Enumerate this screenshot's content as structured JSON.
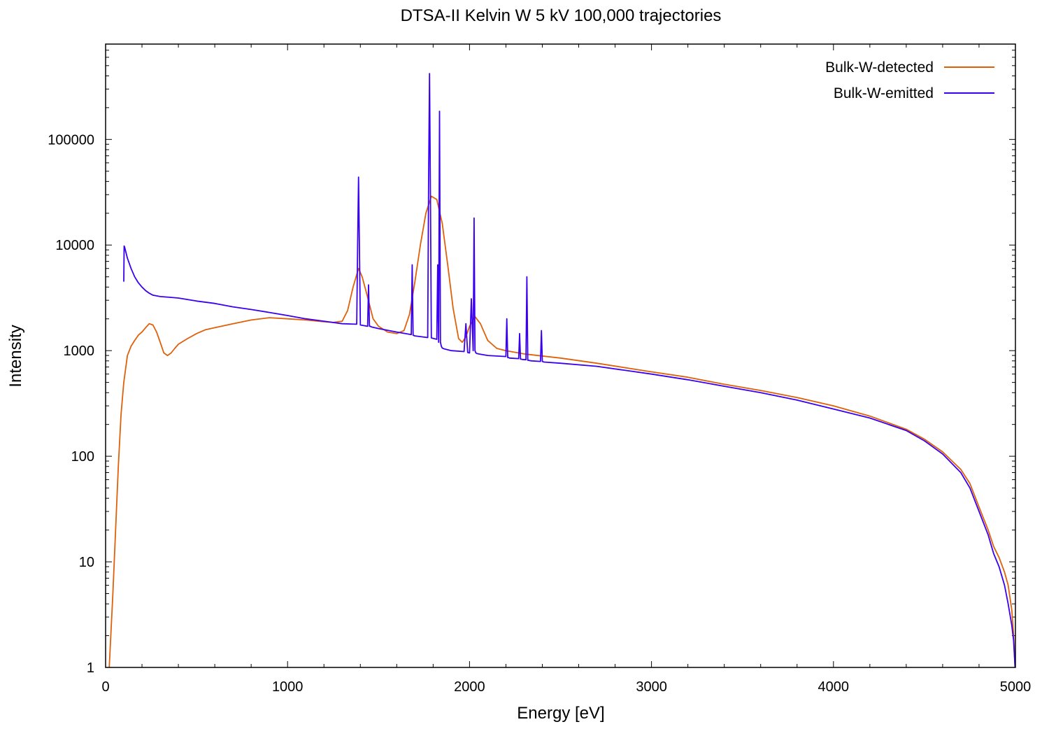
{
  "chart_data": {
    "type": "line",
    "title": "DTSA-II Kelvin W 5 kV 100,000 trajectories",
    "xlabel": "Energy [eV]",
    "ylabel": "Intensity",
    "xlim": [
      0,
      5000
    ],
    "ylim": [
      1,
      800000
    ],
    "y_scale": "log",
    "grid": false,
    "legend_position": "top-right",
    "x_ticks": [
      {
        "value": 0,
        "label": "0"
      },
      {
        "value": 1000,
        "label": "1000"
      },
      {
        "value": 2000,
        "label": "2000"
      },
      {
        "value": 3000,
        "label": "3000"
      },
      {
        "value": 4000,
        "label": "4000"
      },
      {
        "value": 5000,
        "label": "5000"
      }
    ],
    "y_ticks": [
      {
        "value": 1,
        "label": "1"
      },
      {
        "value": 10,
        "label": "10"
      },
      {
        "value": 100,
        "label": "100"
      },
      {
        "value": 1000,
        "label": "1000"
      },
      {
        "value": 10000,
        "label": "10000"
      },
      {
        "value": 100000,
        "label": "100000"
      }
    ],
    "series": [
      {
        "name": "Bulk-W-detected",
        "color": "#e0600a",
        "x": [
          20,
          40,
          55,
          70,
          85,
          100,
          120,
          140,
          160,
          180,
          200,
          220,
          240,
          260,
          280,
          300,
          320,
          340,
          360,
          380,
          400,
          450,
          500,
          550,
          600,
          700,
          800,
          900,
          1000,
          1100,
          1200,
          1250,
          1300,
          1330,
          1360,
          1390,
          1410,
          1440,
          1470,
          1500,
          1550,
          1600,
          1640,
          1670,
          1700,
          1730,
          1760,
          1790,
          1820,
          1850,
          1880,
          1910,
          1940,
          1960,
          1980,
          2000,
          2030,
          2060,
          2100,
          2150,
          2200,
          2300,
          2500,
          2700,
          3000,
          3200,
          3400,
          3600,
          3800,
          4000,
          4200,
          4400,
          4500,
          4600,
          4700,
          4750,
          4800,
          4850,
          4880,
          4910,
          4940,
          4960,
          4980,
          4990,
          4998
        ],
        "y": [
          1,
          5,
          20,
          80,
          250,
          500,
          900,
          1100,
          1250,
          1400,
          1500,
          1650,
          1800,
          1750,
          1500,
          1200,
          950,
          900,
          950,
          1050,
          1150,
          1300,
          1450,
          1580,
          1650,
          1800,
          1950,
          2050,
          2000,
          1950,
          1880,
          1850,
          1900,
          2400,
          4000,
          6000,
          5000,
          3200,
          2000,
          1700,
          1500,
          1450,
          1550,
          2200,
          4500,
          10000,
          20000,
          29000,
          27000,
          16000,
          6500,
          2500,
          1300,
          1200,
          1350,
          1700,
          2100,
          1800,
          1250,
          1050,
          1000,
          930,
          850,
          760,
          630,
          560,
          480,
          420,
          360,
          300,
          240,
          180,
          145,
          110,
          75,
          55,
          33,
          20,
          14,
          11,
          8,
          6,
          3.5,
          2,
          1
        ]
      },
      {
        "name": "Bulk-W-emitted",
        "color": "#3a00f0",
        "x": [
          100,
          102,
          105,
          120,
          140,
          160,
          180,
          200,
          220,
          240,
          260,
          280,
          300,
          350,
          400,
          450,
          500,
          600,
          700,
          800,
          900,
          1000,
          1100,
          1200,
          1300,
          1380,
          1385,
          1390,
          1395,
          1400,
          1440,
          1445,
          1450,
          1455,
          1460,
          1500,
          1600,
          1680,
          1685,
          1690,
          1695,
          1700,
          1770,
          1775,
          1780,
          1785,
          1790,
          1820,
          1825,
          1830,
          1835,
          1840,
          1845,
          1850,
          1860,
          1900,
          1970,
          1980,
          1990,
          2000,
          2010,
          2020,
          2025,
          2030,
          2035,
          2040,
          2050,
          2100,
          2200,
          2205,
          2210,
          2215,
          2220,
          2270,
          2275,
          2280,
          2285,
          2290,
          2310,
          2315,
          2320,
          2325,
          2330,
          2340,
          2390,
          2395,
          2400,
          2405,
          2410,
          2500,
          2700,
          3000,
          3200,
          3400,
          3600,
          3800,
          4000,
          4200,
          4400,
          4500,
          4600,
          4700,
          4750,
          4800,
          4850,
          4880,
          4910,
          4940,
          4960,
          4980,
          4990,
          4998
        ],
        "y": [
          4500,
          9800,
          9500,
          7500,
          6000,
          5000,
          4400,
          4000,
          3700,
          3500,
          3350,
          3300,
          3250,
          3200,
          3150,
          3050,
          2950,
          2800,
          2600,
          2450,
          2300,
          2150,
          2000,
          1900,
          1800,
          1780,
          10000,
          44000,
          9000,
          1750,
          1700,
          4200,
          1700,
          1700,
          1680,
          1620,
          1500,
          1420,
          6500,
          1400,
          1390,
          1380,
          1330,
          42000,
          420000,
          30000,
          1320,
          1280,
          6500,
          1200,
          185000,
          1200,
          1100,
          1060,
          1040,
          1000,
          980,
          1800,
          960,
          950,
          3100,
          1000,
          18000,
          1000,
          950,
          940,
          930,
          900,
          880,
          2000,
          860,
          860,
          850,
          840,
          1450,
          830,
          830,
          825,
          820,
          5000,
          810,
          810,
          805,
          800,
          790,
          1550,
          790,
          785,
          780,
          760,
          710,
          600,
          530,
          460,
          400,
          340,
          280,
          230,
          175,
          140,
          105,
          70,
          50,
          30,
          18,
          12,
          9,
          6,
          4,
          2.5,
          1.8,
          1
        ]
      }
    ]
  }
}
